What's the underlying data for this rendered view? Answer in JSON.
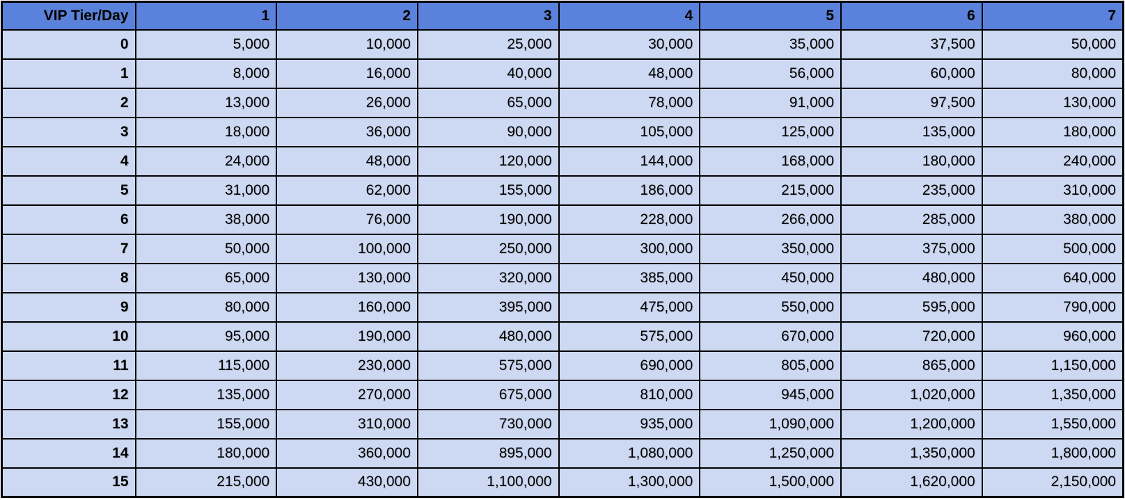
{
  "title": "VIP Tier/Day",
  "colors": {
    "header_bg": "#5a82dc",
    "cell_bg": "#cdd9f3",
    "border": "#000000",
    "text": "#000000"
  },
  "table": {
    "corner_header": "VIP Tier/Day",
    "day_headers": [
      "1",
      "2",
      "3",
      "4",
      "5",
      "6",
      "7"
    ],
    "rows": [
      {
        "tier": "0",
        "values": [
          "5,000",
          "10,000",
          "25,000",
          "30,000",
          "35,000",
          "37,500",
          "50,000"
        ]
      },
      {
        "tier": "1",
        "values": [
          "8,000",
          "16,000",
          "40,000",
          "48,000",
          "56,000",
          "60,000",
          "80,000"
        ]
      },
      {
        "tier": "2",
        "values": [
          "13,000",
          "26,000",
          "65,000",
          "78,000",
          "91,000",
          "97,500",
          "130,000"
        ]
      },
      {
        "tier": "3",
        "values": [
          "18,000",
          "36,000",
          "90,000",
          "105,000",
          "125,000",
          "135,000",
          "180,000"
        ]
      },
      {
        "tier": "4",
        "values": [
          "24,000",
          "48,000",
          "120,000",
          "144,000",
          "168,000",
          "180,000",
          "240,000"
        ]
      },
      {
        "tier": "5",
        "values": [
          "31,000",
          "62,000",
          "155,000",
          "186,000",
          "215,000",
          "235,000",
          "310,000"
        ]
      },
      {
        "tier": "6",
        "values": [
          "38,000",
          "76,000",
          "190,000",
          "228,000",
          "266,000",
          "285,000",
          "380,000"
        ]
      },
      {
        "tier": "7",
        "values": [
          "50,000",
          "100,000",
          "250,000",
          "300,000",
          "350,000",
          "375,000",
          "500,000"
        ]
      },
      {
        "tier": "8",
        "values": [
          "65,000",
          "130,000",
          "320,000",
          "385,000",
          "450,000",
          "480,000",
          "640,000"
        ]
      },
      {
        "tier": "9",
        "values": [
          "80,000",
          "160,000",
          "395,000",
          "475,000",
          "550,000",
          "595,000",
          "790,000"
        ]
      },
      {
        "tier": "10",
        "values": [
          "95,000",
          "190,000",
          "480,000",
          "575,000",
          "670,000",
          "720,000",
          "960,000"
        ]
      },
      {
        "tier": "11",
        "values": [
          "115,000",
          "230,000",
          "575,000",
          "690,000",
          "805,000",
          "865,000",
          "1,150,000"
        ]
      },
      {
        "tier": "12",
        "values": [
          "135,000",
          "270,000",
          "675,000",
          "810,000",
          "945,000",
          "1,020,000",
          "1,350,000"
        ]
      },
      {
        "tier": "13",
        "values": [
          "155,000",
          "310,000",
          "730,000",
          "935,000",
          "1,090,000",
          "1,200,000",
          "1,550,000"
        ]
      },
      {
        "tier": "14",
        "values": [
          "180,000",
          "360,000",
          "895,000",
          "1,080,000",
          "1,250,000",
          "1,350,000",
          "1,800,000"
        ]
      },
      {
        "tier": "15",
        "values": [
          "215,000",
          "430,000",
          "1,100,000",
          "1,300,000",
          "1,500,000",
          "1,620,000",
          "2,150,000"
        ]
      }
    ]
  },
  "chart_data": {
    "type": "table",
    "title": "VIP Tier/Day",
    "columns": [
      "VIP Tier/Day",
      "1",
      "2",
      "3",
      "4",
      "5",
      "6",
      "7"
    ],
    "rows": [
      [
        0,
        5000,
        10000,
        25000,
        30000,
        35000,
        37500,
        50000
      ],
      [
        1,
        8000,
        16000,
        40000,
        48000,
        56000,
        60000,
        80000
      ],
      [
        2,
        13000,
        26000,
        65000,
        78000,
        91000,
        97500,
        130000
      ],
      [
        3,
        18000,
        36000,
        90000,
        105000,
        125000,
        135000,
        180000
      ],
      [
        4,
        24000,
        48000,
        120000,
        144000,
        168000,
        180000,
        240000
      ],
      [
        5,
        31000,
        62000,
        155000,
        186000,
        215000,
        235000,
        310000
      ],
      [
        6,
        38000,
        76000,
        190000,
        228000,
        266000,
        285000,
        380000
      ],
      [
        7,
        50000,
        100000,
        250000,
        300000,
        350000,
        375000,
        500000
      ],
      [
        8,
        65000,
        130000,
        320000,
        385000,
        450000,
        480000,
        640000
      ],
      [
        9,
        80000,
        160000,
        395000,
        475000,
        550000,
        595000,
        790000
      ],
      [
        10,
        95000,
        190000,
        480000,
        575000,
        670000,
        720000,
        960000
      ],
      [
        11,
        115000,
        230000,
        575000,
        690000,
        805000,
        865000,
        1150000
      ],
      [
        12,
        135000,
        270000,
        675000,
        810000,
        945000,
        1020000,
        1350000
      ],
      [
        13,
        155000,
        310000,
        730000,
        935000,
        1090000,
        1200000,
        1550000
      ],
      [
        14,
        180000,
        360000,
        895000,
        1080000,
        1250000,
        1350000,
        1800000
      ],
      [
        15,
        215000,
        430000,
        1100000,
        1300000,
        1500000,
        1620000,
        2150000
      ]
    ],
    "layout": {
      "header_row": true,
      "header_column": true,
      "grid": true,
      "alignment": "right"
    }
  }
}
